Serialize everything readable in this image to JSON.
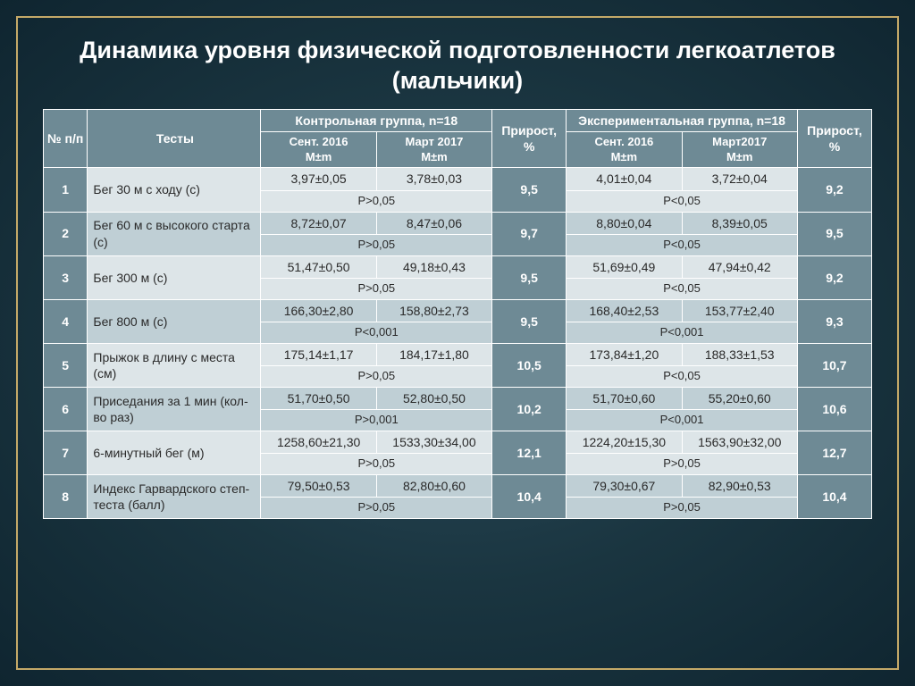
{
  "title": "Динамика уровня физической подготовленности легкоатлетов (мальчики)",
  "headers": {
    "num": "№ п/п",
    "tests": "Тесты",
    "control": "Контрольная группа, n=18",
    "gain": "Прирост, %",
    "experimental": "Экспериментальная группа, n=18",
    "gain2": "Прирост, %",
    "sept": "Сент. 2016",
    "march": "Март 2017",
    "march2": "Март2017",
    "mpm": "M±m"
  },
  "rows": [
    {
      "n": "1",
      "test": "Бег 30 м с ходу (с)",
      "c1": "3,97±0,05",
      "c2": "3,78±0,03",
      "cp": "Р>0,05",
      "cg": "9,5",
      "e1": "4,01±0,04",
      "e2": "3,72±0,04",
      "ep": "Р<0,05",
      "eg": "9,2",
      "band": "light"
    },
    {
      "n": "2",
      "test": "Бег 60 м с высокого старта (с)",
      "c1": "8,72±0,07",
      "c2": "8,47±0,06",
      "cp": "Р>0,05",
      "cg": "9,7",
      "e1": "8,80±0,04",
      "e2": "8,39±0,05",
      "ep": "Р<0,05",
      "eg": "9,5",
      "band": "dark"
    },
    {
      "n": "3",
      "test": "Бег 300 м (с)",
      "c1": "51,47±0,50",
      "c2": "49,18±0,43",
      "cp": "Р>0,05",
      "cg": "9,5",
      "e1": "51,69±0,49",
      "e2": "47,94±0,42",
      "ep": "Р<0,05",
      "eg": "9,2",
      "band": "light"
    },
    {
      "n": "4",
      "test": "Бег 800 м (с)",
      "c1": "166,30±2,80",
      "c2": "158,80±2,73",
      "cp": "Р<0,001",
      "cg": "9,5",
      "e1": "168,40±2,53",
      "e2": "153,77±2,40",
      "ep": "Р<0,001",
      "eg": "9,3",
      "band": "dark"
    },
    {
      "n": "5",
      "test": "Прыжок в длину с места (см)",
      "c1": "175,14±1,17",
      "c2": "184,17±1,80",
      "cp": "Р>0,05",
      "cg": "10,5",
      "e1": "173,84±1,20",
      "e2": "188,33±1,53",
      "ep": "Р<0,05",
      "eg": "10,7",
      "band": "light"
    },
    {
      "n": "6",
      "test": "Приседания за 1 мин (кол-во раз)",
      "c1": "51,70±0,50",
      "c2": "52,80±0,50",
      "cp": "Р>0,001",
      "cg": "10,2",
      "e1": "51,70±0,60",
      "e2": "55,20±0,60",
      "ep": "Р<0,001",
      "eg": "10,6",
      "band": "dark"
    },
    {
      "n": "7",
      "test": "6-минутный бег (м)",
      "c1": "1258,60±21,30",
      "c2": "1533,30±34,00",
      "cp": "Р>0,05",
      "cg": "12,1",
      "e1": "1224,20±15,30",
      "e2": "1563,90±32,00",
      "ep": "Р>0,05",
      "eg": "12,7",
      "band": "light"
    },
    {
      "n": "8",
      "test": "Индекс Гарвардского степ-теста (балл)",
      "c1": "79,50±0,53",
      "c2": "82,80±0,60",
      "cp": "Р>0,05",
      "cg": "10,4",
      "e1": "79,30±0,67",
      "e2": "82,90±0,53",
      "ep": "Р>0,05",
      "eg": "10,4",
      "band": "dark"
    }
  ],
  "colors": {
    "header_bg": "#6e8a95",
    "light_bg": "#dde5e8",
    "dark_bg": "#bfcfd5",
    "frame_border": "#c4a968",
    "title_color": "#ffffff"
  }
}
